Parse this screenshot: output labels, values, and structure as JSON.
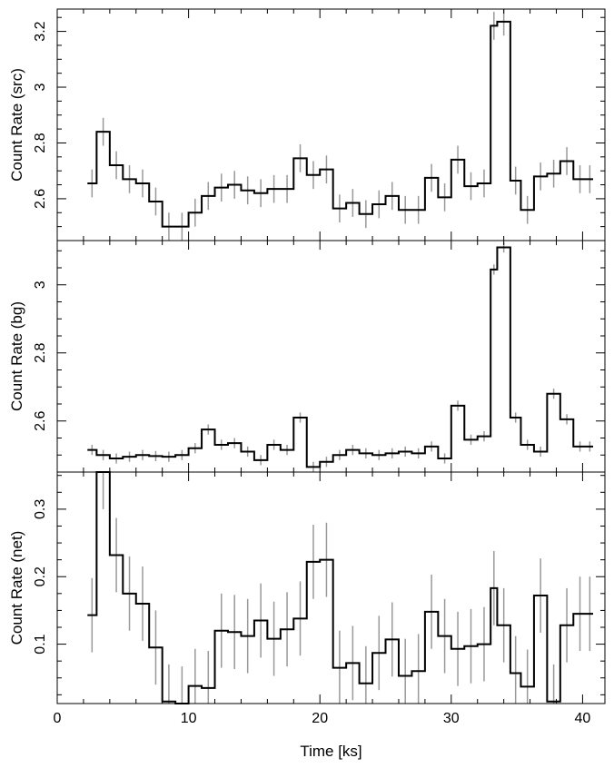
{
  "chart_data": [
    {
      "type": "line",
      "step": true,
      "ylabel": "Count Rate (src)",
      "xlim": [
        0,
        41.7
      ],
      "ylim": [
        2.45,
        3.28
      ],
      "yticks": [
        2.6,
        2.8,
        3,
        3.2
      ],
      "ytick_labels": [
        "2.6",
        "2.8",
        "3",
        "3.2"
      ],
      "bin_edges": [
        2.3,
        3.0,
        4.0,
        5.0,
        6.0,
        7.0,
        8.0,
        9.0,
        10.0,
        11.0,
        12.0,
        13.0,
        14.0,
        15.0,
        16.0,
        17.0,
        18.0,
        19.0,
        20.0,
        21.0,
        22.0,
        23.0,
        24.0,
        25.0,
        26.0,
        27.0,
        28.0,
        29.0,
        30.0,
        31.0,
        32.0,
        33.0,
        33.5,
        34.5,
        35.3,
        36.3,
        37.3,
        38.3,
        39.3,
        40.3,
        40.8
      ],
      "values": [
        2.655,
        2.84,
        2.72,
        2.67,
        2.655,
        2.59,
        2.5,
        2.5,
        2.55,
        2.61,
        2.64,
        2.65,
        2.63,
        2.62,
        2.635,
        2.635,
        2.745,
        2.685,
        2.705,
        2.565,
        2.585,
        2.545,
        2.58,
        2.61,
        2.56,
        2.56,
        2.675,
        2.605,
        2.74,
        2.645,
        2.655,
        3.22,
        3.235,
        2.665,
        2.56,
        2.68,
        2.69,
        2.735,
        2.67,
        2.67
      ],
      "error": [
        0.05,
        0.05,
        0.05,
        0.05,
        0.05,
        0.05,
        0.05,
        0.05,
        0.05,
        0.05,
        0.05,
        0.05,
        0.05,
        0.05,
        0.05,
        0.05,
        0.05,
        0.05,
        0.05,
        0.05,
        0.05,
        0.05,
        0.05,
        0.05,
        0.05,
        0.05,
        0.05,
        0.05,
        0.05,
        0.05,
        0.05,
        0.05,
        0.05,
        0.05,
        0.05,
        0.05,
        0.05,
        0.05,
        0.05,
        0.05
      ]
    },
    {
      "type": "line",
      "step": true,
      "ylabel": "Count Rate (bg)",
      "xlim": [
        0,
        41.7
      ],
      "ylim": [
        2.45,
        3.13
      ],
      "yticks": [
        2.6,
        2.8,
        3
      ],
      "ytick_labels": [
        "2.6",
        "2.8",
        "3"
      ],
      "bin_edges": [
        2.3,
        3.0,
        4.0,
        5.0,
        6.0,
        7.0,
        8.0,
        9.0,
        10.0,
        11.0,
        12.0,
        13.0,
        14.0,
        15.0,
        16.0,
        17.0,
        18.0,
        19.0,
        20.0,
        21.0,
        22.0,
        23.0,
        24.0,
        25.0,
        26.0,
        27.0,
        28.0,
        29.0,
        30.0,
        31.0,
        32.0,
        33.0,
        33.5,
        34.5,
        35.3,
        36.3,
        37.3,
        38.3,
        39.3,
        40.3,
        40.8
      ],
      "values": [
        2.515,
        2.5,
        2.49,
        2.495,
        2.5,
        2.497,
        2.495,
        2.5,
        2.52,
        2.575,
        2.53,
        2.535,
        2.51,
        2.485,
        2.53,
        2.515,
        2.61,
        2.465,
        2.48,
        2.5,
        2.515,
        2.505,
        2.5,
        2.505,
        2.51,
        2.505,
        2.525,
        2.49,
        2.645,
        2.545,
        2.555,
        3.045,
        3.11,
        2.61,
        2.53,
        2.51,
        2.68,
        2.605,
        2.525,
        2.525
      ],
      "error": [
        0.015,
        0.015,
        0.015,
        0.015,
        0.015,
        0.015,
        0.015,
        0.015,
        0.015,
        0.015,
        0.015,
        0.015,
        0.015,
        0.015,
        0.015,
        0.015,
        0.015,
        0.015,
        0.015,
        0.015,
        0.015,
        0.015,
        0.015,
        0.015,
        0.015,
        0.015,
        0.015,
        0.015,
        0.015,
        0.015,
        0.015,
        0.015,
        0.015,
        0.015,
        0.015,
        0.015,
        0.015,
        0.015,
        0.015,
        0.015
      ]
    },
    {
      "type": "line",
      "step": true,
      "ylabel": "Count Rate (net)",
      "xlabel": "Time [ks]",
      "xlim": [
        0,
        41.7
      ],
      "ylim": [
        0.012,
        0.355
      ],
      "xticks": [
        0,
        10,
        20,
        30,
        40
      ],
      "xtick_labels": [
        "0",
        "10",
        "20",
        "30",
        "40"
      ],
      "yticks": [
        0.1,
        0.2,
        0.3
      ],
      "ytick_labels": [
        "0.1",
        "0.2",
        "0.3"
      ],
      "bin_edges": [
        2.3,
        3.0,
        4.0,
        5.0,
        6.0,
        7.0,
        8.0,
        9.0,
        10.0,
        11.0,
        12.0,
        13.0,
        14.0,
        15.0,
        16.0,
        17.0,
        18.0,
        19.0,
        20.0,
        21.0,
        22.0,
        23.0,
        24.0,
        25.0,
        26.0,
        27.0,
        28.0,
        29.0,
        30.0,
        31.0,
        32.0,
        33.0,
        33.5,
        34.5,
        35.3,
        36.3,
        37.3,
        38.3,
        39.3,
        40.3,
        40.8
      ],
      "values": [
        0.143,
        0.355,
        0.232,
        0.175,
        0.16,
        0.095,
        0.015,
        0.012,
        0.038,
        0.035,
        0.12,
        0.118,
        0.112,
        0.135,
        0.108,
        0.122,
        0.138,
        0.222,
        0.225,
        0.065,
        0.072,
        0.042,
        0.087,
        0.107,
        0.053,
        0.06,
        0.148,
        0.112,
        0.093,
        0.097,
        0.1,
        0.183,
        0.128,
        0.057,
        0.037,
        0.172,
        0.015,
        0.128,
        0.145,
        0.145
      ],
      "error": [
        0.055,
        0.055,
        0.055,
        0.055,
        0.055,
        0.055,
        0.055,
        0.055,
        0.055,
        0.055,
        0.055,
        0.055,
        0.055,
        0.055,
        0.055,
        0.055,
        0.055,
        0.055,
        0.055,
        0.055,
        0.055,
        0.055,
        0.055,
        0.055,
        0.055,
        0.055,
        0.055,
        0.055,
        0.055,
        0.055,
        0.055,
        0.055,
        0.055,
        0.055,
        0.055,
        0.055,
        0.055,
        0.055,
        0.055,
        0.055
      ]
    }
  ],
  "colors": {
    "line": "#000000",
    "error_bar": "#999999",
    "frame": "#000000",
    "background": "#ffffff"
  }
}
